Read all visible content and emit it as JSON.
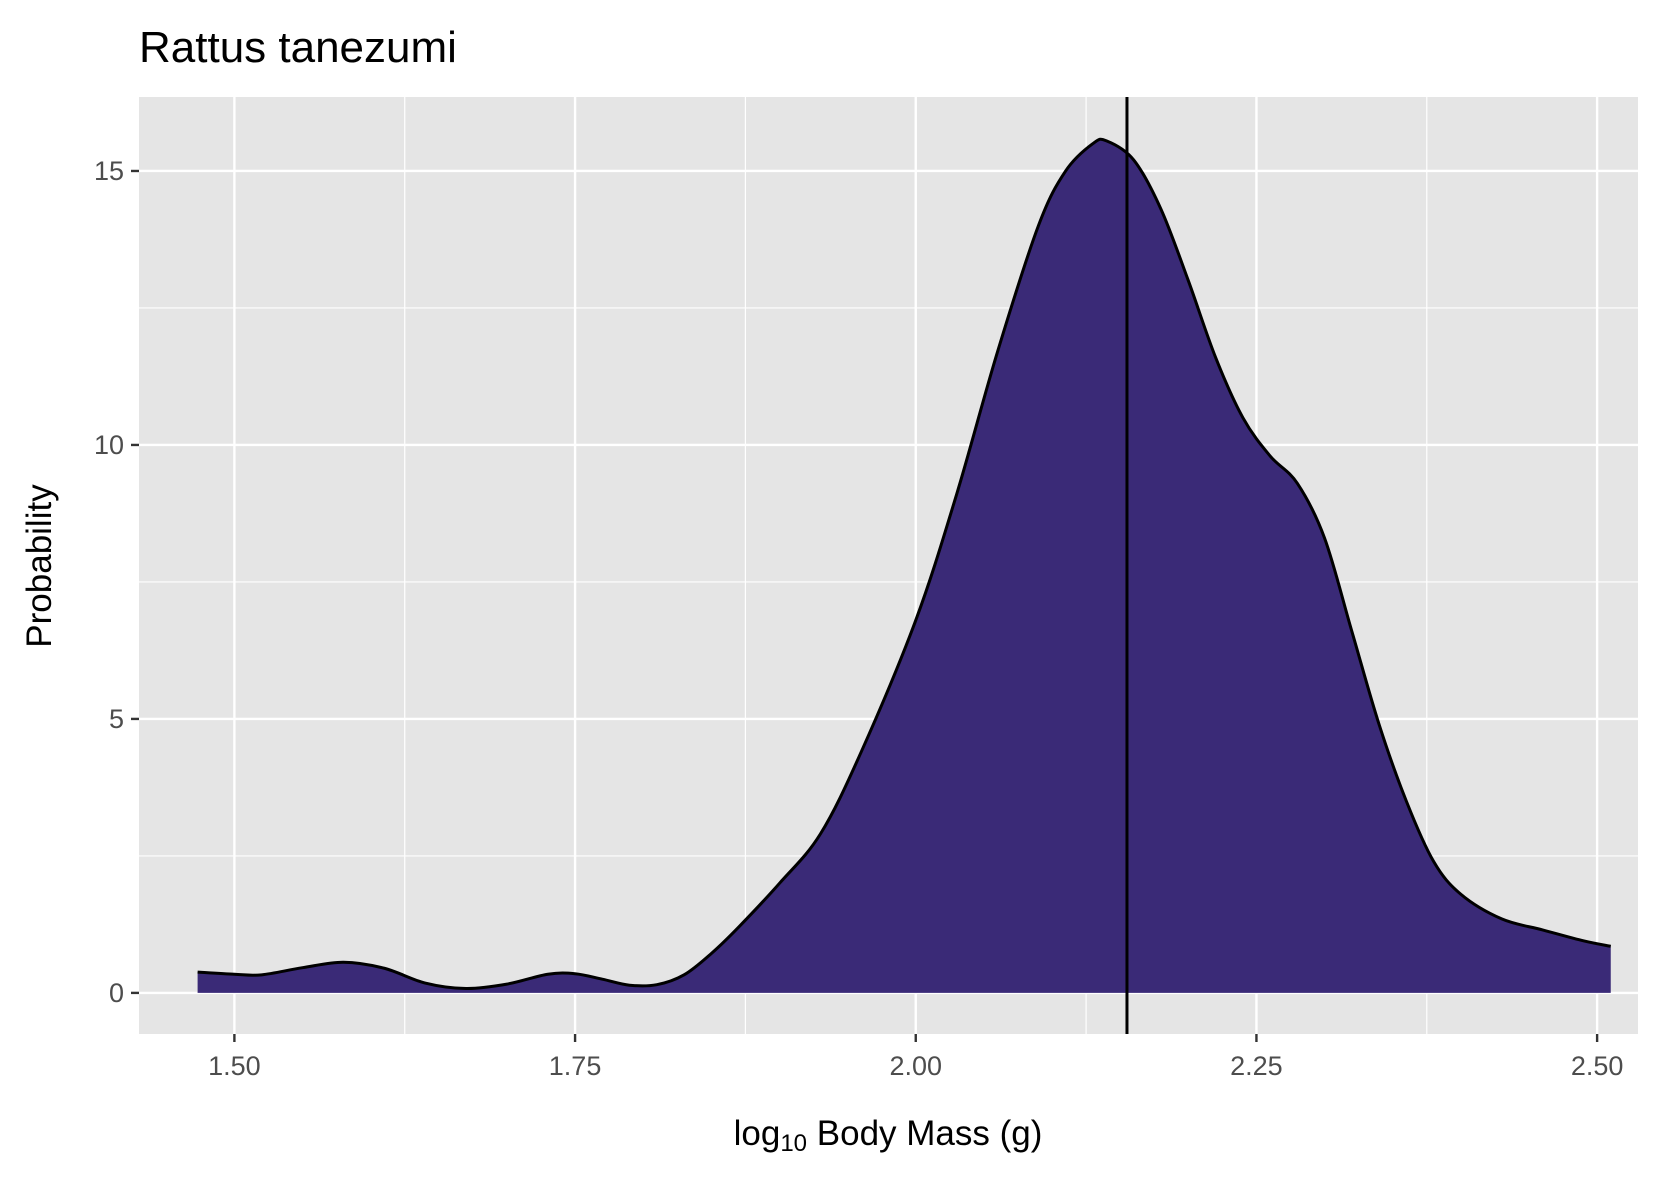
{
  "chart_data": {
    "type": "area",
    "title": "Rattus tanezumi",
    "xlabel": {
      "prefix": "log",
      "subscript": "10",
      "suffix": " Body Mass (g)"
    },
    "ylabel": "Probability",
    "xlim": [
      1.43,
      2.53
    ],
    "ylim": [
      -0.75,
      16.35
    ],
    "x_ticks": [
      {
        "value": 1.5,
        "label": "1.50"
      },
      {
        "value": 1.75,
        "label": "1.75"
      },
      {
        "value": 2.0,
        "label": "2.00"
      },
      {
        "value": 2.25,
        "label": "2.25"
      },
      {
        "value": 2.5,
        "label": "2.50"
      }
    ],
    "y_ticks": [
      {
        "value": 0,
        "label": "0"
      },
      {
        "value": 5,
        "label": "5"
      },
      {
        "value": 10,
        "label": "10"
      },
      {
        "value": 15,
        "label": "15"
      }
    ],
    "grid": true,
    "legend": "none",
    "fill_color": "#3a2a77",
    "panel_color": "#e5e5e5",
    "vline_x": 2.155,
    "series": [
      {
        "x": [
          1.473,
          1.5,
          1.52,
          1.55,
          1.58,
          1.61,
          1.64,
          1.67,
          1.7,
          1.73,
          1.75,
          1.77,
          1.79,
          1.81,
          1.83,
          1.85,
          1.87,
          1.9,
          1.93,
          1.96,
          2.0,
          2.03,
          2.06,
          2.09,
          2.11,
          2.13,
          2.14,
          2.16,
          2.18,
          2.2,
          2.22,
          2.24,
          2.26,
          2.28,
          2.3,
          2.32,
          2.34,
          2.36,
          2.38,
          2.4,
          2.43,
          2.46,
          2.49,
          2.51
        ],
        "y": [
          0.38,
          0.34,
          0.33,
          0.46,
          0.56,
          0.45,
          0.18,
          0.08,
          0.16,
          0.34,
          0.35,
          0.25,
          0.14,
          0.15,
          0.33,
          0.72,
          1.2,
          2.0,
          2.9,
          4.4,
          6.8,
          9.1,
          11.7,
          14.0,
          15.0,
          15.5,
          15.55,
          15.2,
          14.3,
          13.0,
          11.6,
          10.5,
          9.8,
          9.3,
          8.3,
          6.6,
          4.9,
          3.5,
          2.4,
          1.8,
          1.35,
          1.15,
          0.95,
          0.85
        ]
      }
    ]
  }
}
